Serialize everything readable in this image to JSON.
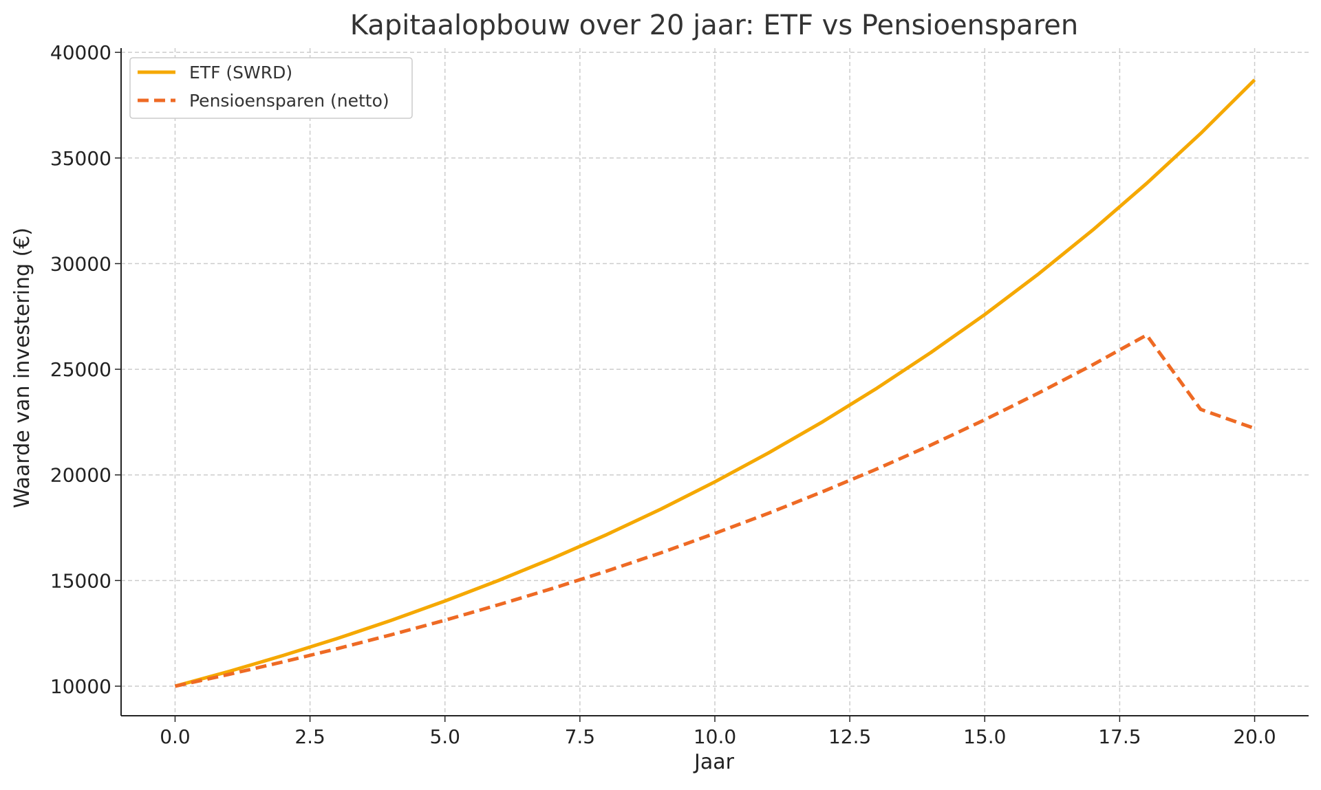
{
  "chart_data": {
    "type": "line",
    "title": "Kapitaalopbouw over 20 jaar: ETF vs Pensioensparen",
    "xlabel": "Jaar",
    "ylabel": "Waarde van investering (€)",
    "xlim": [
      -1,
      21
    ],
    "ylim": [
      8600,
      40200
    ],
    "x_ticks": [
      "0.0",
      "2.5",
      "5.0",
      "7.5",
      "10.0",
      "12.5",
      "15.0",
      "17.5",
      "20.0"
    ],
    "y_ticks": [
      "10000",
      "15000",
      "20000",
      "25000",
      "30000",
      "35000",
      "40000"
    ],
    "grid": true,
    "legend_position": "top-left",
    "x": [
      0,
      1,
      2,
      3,
      4,
      5,
      6,
      7,
      8,
      9,
      10,
      11,
      12,
      13,
      14,
      15,
      16,
      17,
      18,
      19,
      20
    ],
    "series": [
      {
        "name": "ETF (SWRD)",
        "color": "#f5a800",
        "style": "solid",
        "values": [
          10000,
          10700,
          11450,
          12250,
          13110,
          14030,
          15010,
          16060,
          17180,
          18380,
          19670,
          21050,
          22520,
          24100,
          25790,
          27590,
          29520,
          31590,
          33800,
          36160,
          38700
        ]
      },
      {
        "name": "Pensioensparen (netto)",
        "color": "#ee6a24",
        "style": "dashed",
        "values": [
          10000,
          10560,
          11150,
          11770,
          12430,
          13120,
          13860,
          14630,
          15450,
          16310,
          17230,
          18190,
          19210,
          20280,
          21410,
          22610,
          23880,
          25210,
          26620,
          23100,
          22200
        ]
      }
    ]
  }
}
